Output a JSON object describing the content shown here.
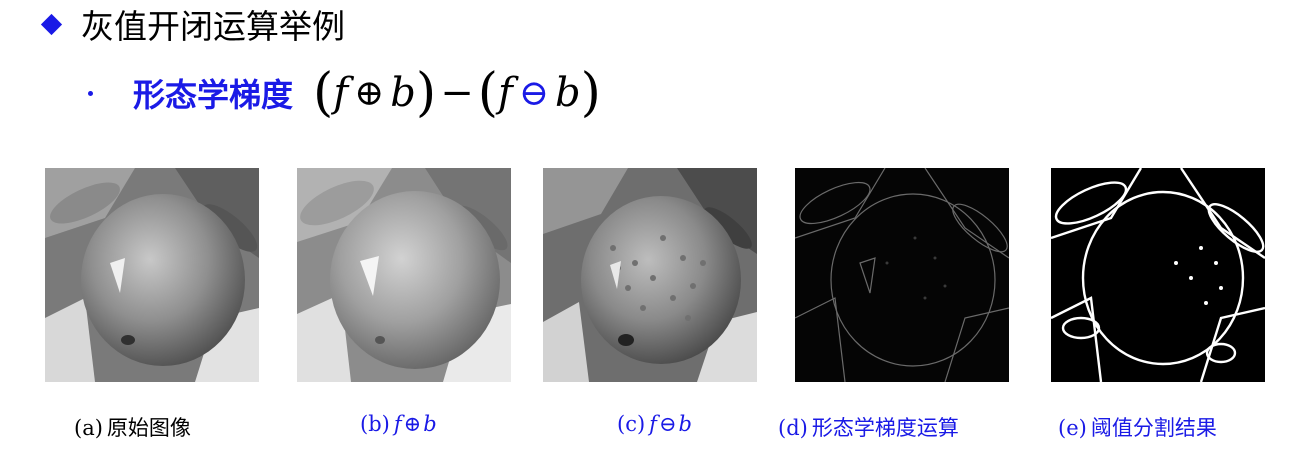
{
  "heading": {
    "text": "灰值开闭运算举例"
  },
  "bullet": {
    "term": "形态学梯度",
    "formula": {
      "lparen1": "(",
      "f1": "f",
      "op1": "⊕",
      "b1": "b",
      "rparen1": ")",
      "minus": "−",
      "lparen2": "(",
      "f2": "f",
      "op2": "⊖",
      "b2": "b",
      "rparen2": ")"
    }
  },
  "captions": {
    "a": {
      "prefix": "(a)",
      "text": "原始图像"
    },
    "b": {
      "prefix": "(b)",
      "f": "f",
      "op": "⊕",
      "b": "b"
    },
    "c": {
      "prefix": "(c)",
      "f": "f",
      "op": "⊖",
      "b": "b"
    },
    "d": {
      "prefix": "(d)",
      "text": "形态学梯度运算"
    },
    "e": {
      "prefix": "(e)",
      "text": "阈值分割结果"
    }
  },
  "colors": {
    "accent": "#1a1ae6",
    "text": "#000000"
  }
}
